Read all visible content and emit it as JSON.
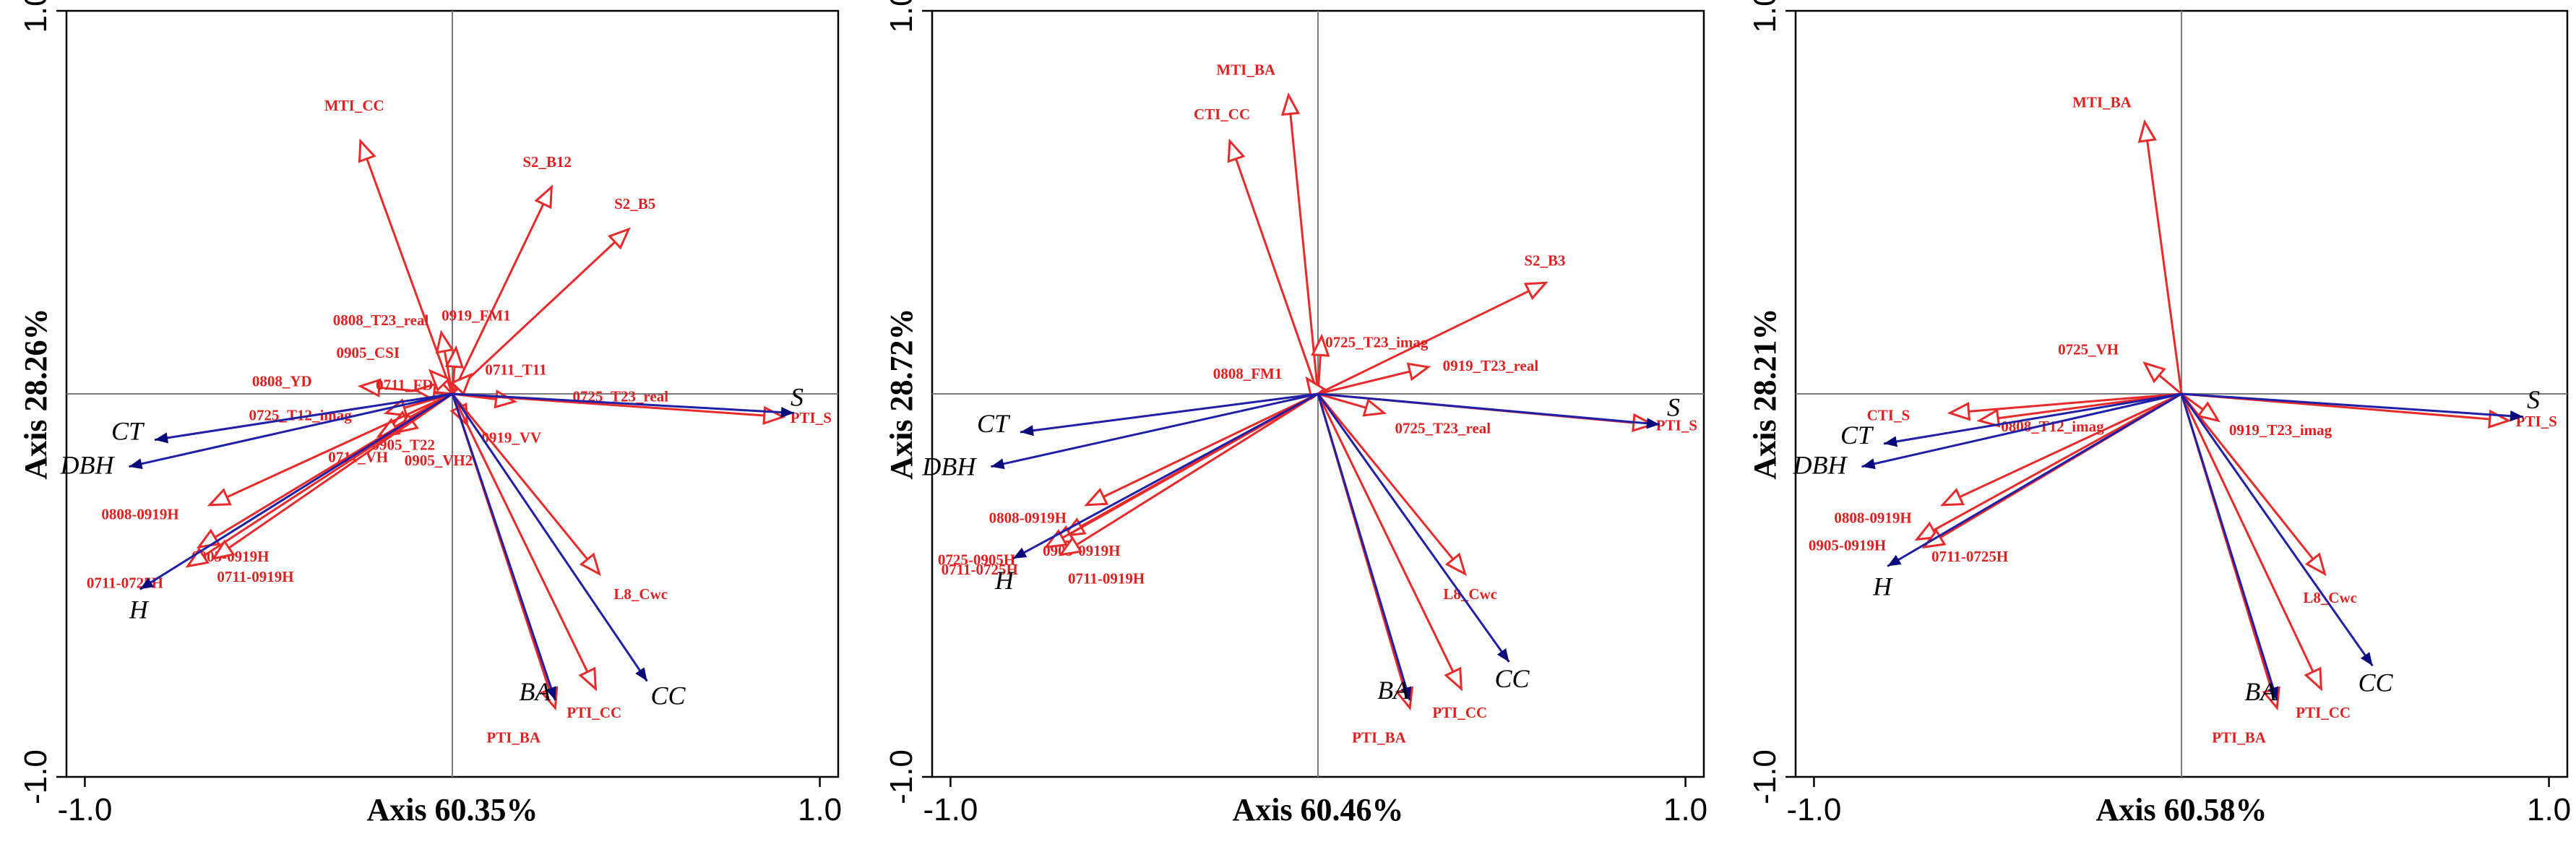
{
  "chart_data": [
    {
      "type": "biplot",
      "xlabel": "Axis 60.35%",
      "ylabel": "Axis 28.26%",
      "xlim": [
        -1.05,
        1.05
      ],
      "ylim": [
        -1.0,
        1.0
      ],
      "xticks": [
        -1.0,
        1.0
      ],
      "yticks": [
        -1.0,
        1.0
      ],
      "tick_labels": {
        "x": [
          "-1.0",
          "1.0"
        ],
        "y": [
          "-1.0",
          "1.0"
        ]
      },
      "zero_lines": true,
      "response_vectors": [
        {
          "name": "S",
          "x": 0.93,
          "y": -0.05
        },
        {
          "name": "CT",
          "x": -0.81,
          "y": -0.12
        },
        {
          "name": "DBH",
          "x": -0.88,
          "y": -0.19
        },
        {
          "name": "H",
          "x": -0.85,
          "y": -0.51
        },
        {
          "name": "BA",
          "x": 0.28,
          "y": -0.8
        },
        {
          "name": "CC",
          "x": 0.53,
          "y": -0.75
        }
      ],
      "explanatory_vectors": [
        {
          "name": "MTI_CC",
          "x": -0.25,
          "y": 0.66
        },
        {
          "name": "S2_B12",
          "x": 0.27,
          "y": 0.54
        },
        {
          "name": "S2_B5",
          "x": 0.48,
          "y": 0.43
        },
        {
          "name": "0919_FM1",
          "x": 0.01,
          "y": 0.12
        },
        {
          "name": "0808_T23_real",
          "x": -0.03,
          "y": 0.16
        },
        {
          "name": "0905_CSI",
          "x": -0.06,
          "y": 0.06
        },
        {
          "name": "0711_T11",
          "x": 0.05,
          "y": 0.05
        },
        {
          "name": "0808_YD",
          "x": -0.25,
          "y": 0.02
        },
        {
          "name": "0711_FD",
          "x": -0.1,
          "y": 0.01
        },
        {
          "name": "0725_T23_real",
          "x": 0.17,
          "y": -0.02
        },
        {
          "name": "0725_T12_imag",
          "x": -0.18,
          "y": -0.05
        },
        {
          "name": "0905_T22",
          "x": -0.17,
          "y": -0.09
        },
        {
          "name": "0919_VV",
          "x": 0.04,
          "y": -0.08
        },
        {
          "name": "0711_VH",
          "x": -0.2,
          "y": -0.11
        },
        {
          "name": "0905_VH2",
          "x": -0.15,
          "y": -0.1
        },
        {
          "name": "0808-0919H",
          "x": -0.66,
          "y": -0.29
        },
        {
          "name": "0905-0919H",
          "x": -0.69,
          "y": -0.4
        },
        {
          "name": "0711-0725H",
          "x": -0.72,
          "y": -0.45
        },
        {
          "name": "0711-0919H",
          "x": -0.65,
          "y": -0.43
        },
        {
          "name": "L8_Cwc",
          "x": 0.4,
          "y": -0.47
        },
        {
          "name": "PTI_CC",
          "x": 0.39,
          "y": -0.77
        },
        {
          "name": "PTI_BA",
          "x": 0.28,
          "y": -0.82
        },
        {
          "name": "PTI_S",
          "x": 0.9,
          "y": -0.06
        }
      ]
    },
    {
      "type": "biplot",
      "xlabel": "Axis 60.46%",
      "ylabel": "Axis 28.72%",
      "xlim": [
        -1.05,
        1.05
      ],
      "ylim": [
        -1.0,
        1.0
      ],
      "xticks": [
        -1.0,
        1.0
      ],
      "yticks": [
        -1.0,
        1.0
      ],
      "tick_labels": {
        "x": [
          "-1.0",
          "1.0"
        ],
        "y": [
          "-1.0",
          "1.0"
        ]
      },
      "zero_lines": true,
      "response_vectors": [
        {
          "name": "S",
          "x": 0.93,
          "y": -0.08
        },
        {
          "name": "CT",
          "x": -0.81,
          "y": -0.1
        },
        {
          "name": "DBH",
          "x": -0.89,
          "y": -0.19
        },
        {
          "name": "H",
          "x": -0.83,
          "y": -0.43
        },
        {
          "name": "BA",
          "x": 0.25,
          "y": -0.8
        },
        {
          "name": "CC",
          "x": 0.52,
          "y": -0.7
        }
      ],
      "explanatory_vectors": [
        {
          "name": "MTI_BA",
          "x": -0.08,
          "y": 0.78
        },
        {
          "name": "CTI_CC",
          "x": -0.24,
          "y": 0.66
        },
        {
          "name": "S2_B3",
          "x": 0.62,
          "y": 0.29
        },
        {
          "name": "0725_T23_imag",
          "x": 0.01,
          "y": 0.15
        },
        {
          "name": "0808_FM1",
          "x": -0.03,
          "y": 0.04
        },
        {
          "name": "0919_T23_real",
          "x": 0.3,
          "y": 0.07
        },
        {
          "name": "0725_T23_real",
          "x": 0.18,
          "y": -0.05
        },
        {
          "name": "0808-0919H",
          "x": -0.63,
          "y": -0.29
        },
        {
          "name": "0905-0919H",
          "x": -0.69,
          "y": -0.37
        },
        {
          "name": "0725-0905H",
          "x": -0.72,
          "y": -0.39
        },
        {
          "name": "0711-0725H",
          "x": -0.74,
          "y": -0.4
        },
        {
          "name": "0711-0919H",
          "x": -0.7,
          "y": -0.42
        },
        {
          "name": "L8_Cwc",
          "x": 0.4,
          "y": -0.47
        },
        {
          "name": "PTI_CC",
          "x": 0.39,
          "y": -0.77
        },
        {
          "name": "PTI_BA",
          "x": 0.25,
          "y": -0.82
        },
        {
          "name": "PTI_S",
          "x": 0.91,
          "y": -0.08
        }
      ]
    },
    {
      "type": "biplot",
      "xlabel": "Axis 60.58%",
      "ylabel": "Axis 28.21%",
      "xlim": [
        -1.05,
        1.05
      ],
      "ylim": [
        -1.0,
        1.0
      ],
      "xticks": [
        -1.0,
        1.0
      ],
      "yticks": [
        -1.0,
        1.0
      ],
      "tick_labels": {
        "x": [
          "-1.0",
          "1.0"
        ],
        "y": [
          "-1.0",
          "1.0"
        ]
      },
      "zero_lines": true,
      "response_vectors": [
        {
          "name": "S",
          "x": 0.93,
          "y": -0.06
        },
        {
          "name": "CT",
          "x": -0.81,
          "y": -0.13
        },
        {
          "name": "DBH",
          "x": -0.87,
          "y": -0.19
        },
        {
          "name": "H",
          "x": -0.8,
          "y": -0.45
        },
        {
          "name": "BA",
          "x": 0.26,
          "y": -0.8
        },
        {
          "name": "CC",
          "x": 0.52,
          "y": -0.71
        }
      ],
      "explanatory_vectors": [
        {
          "name": "MTI_BA",
          "x": -0.1,
          "y": 0.71
        },
        {
          "name": "0725_VH",
          "x": -0.1,
          "y": 0.08
        },
        {
          "name": "CTI_S",
          "x": -0.63,
          "y": -0.05
        },
        {
          "name": "0808_T12_imag",
          "x": -0.55,
          "y": -0.07
        },
        {
          "name": "0919_T23_imag",
          "x": 0.1,
          "y": -0.07
        },
        {
          "name": "0808-0919H",
          "x": -0.65,
          "y": -0.29
        },
        {
          "name": "0905-0919H",
          "x": -0.72,
          "y": -0.38
        },
        {
          "name": "0711-0725H",
          "x": -0.7,
          "y": -0.4
        },
        {
          "name": "L8_Cwc",
          "x": 0.39,
          "y": -0.47
        },
        {
          "name": "PTI_CC",
          "x": 0.38,
          "y": -0.77
        },
        {
          "name": "PTI_BA",
          "x": 0.26,
          "y": -0.82
        },
        {
          "name": "PTI_S",
          "x": 0.89,
          "y": -0.07
        }
      ]
    }
  ]
}
